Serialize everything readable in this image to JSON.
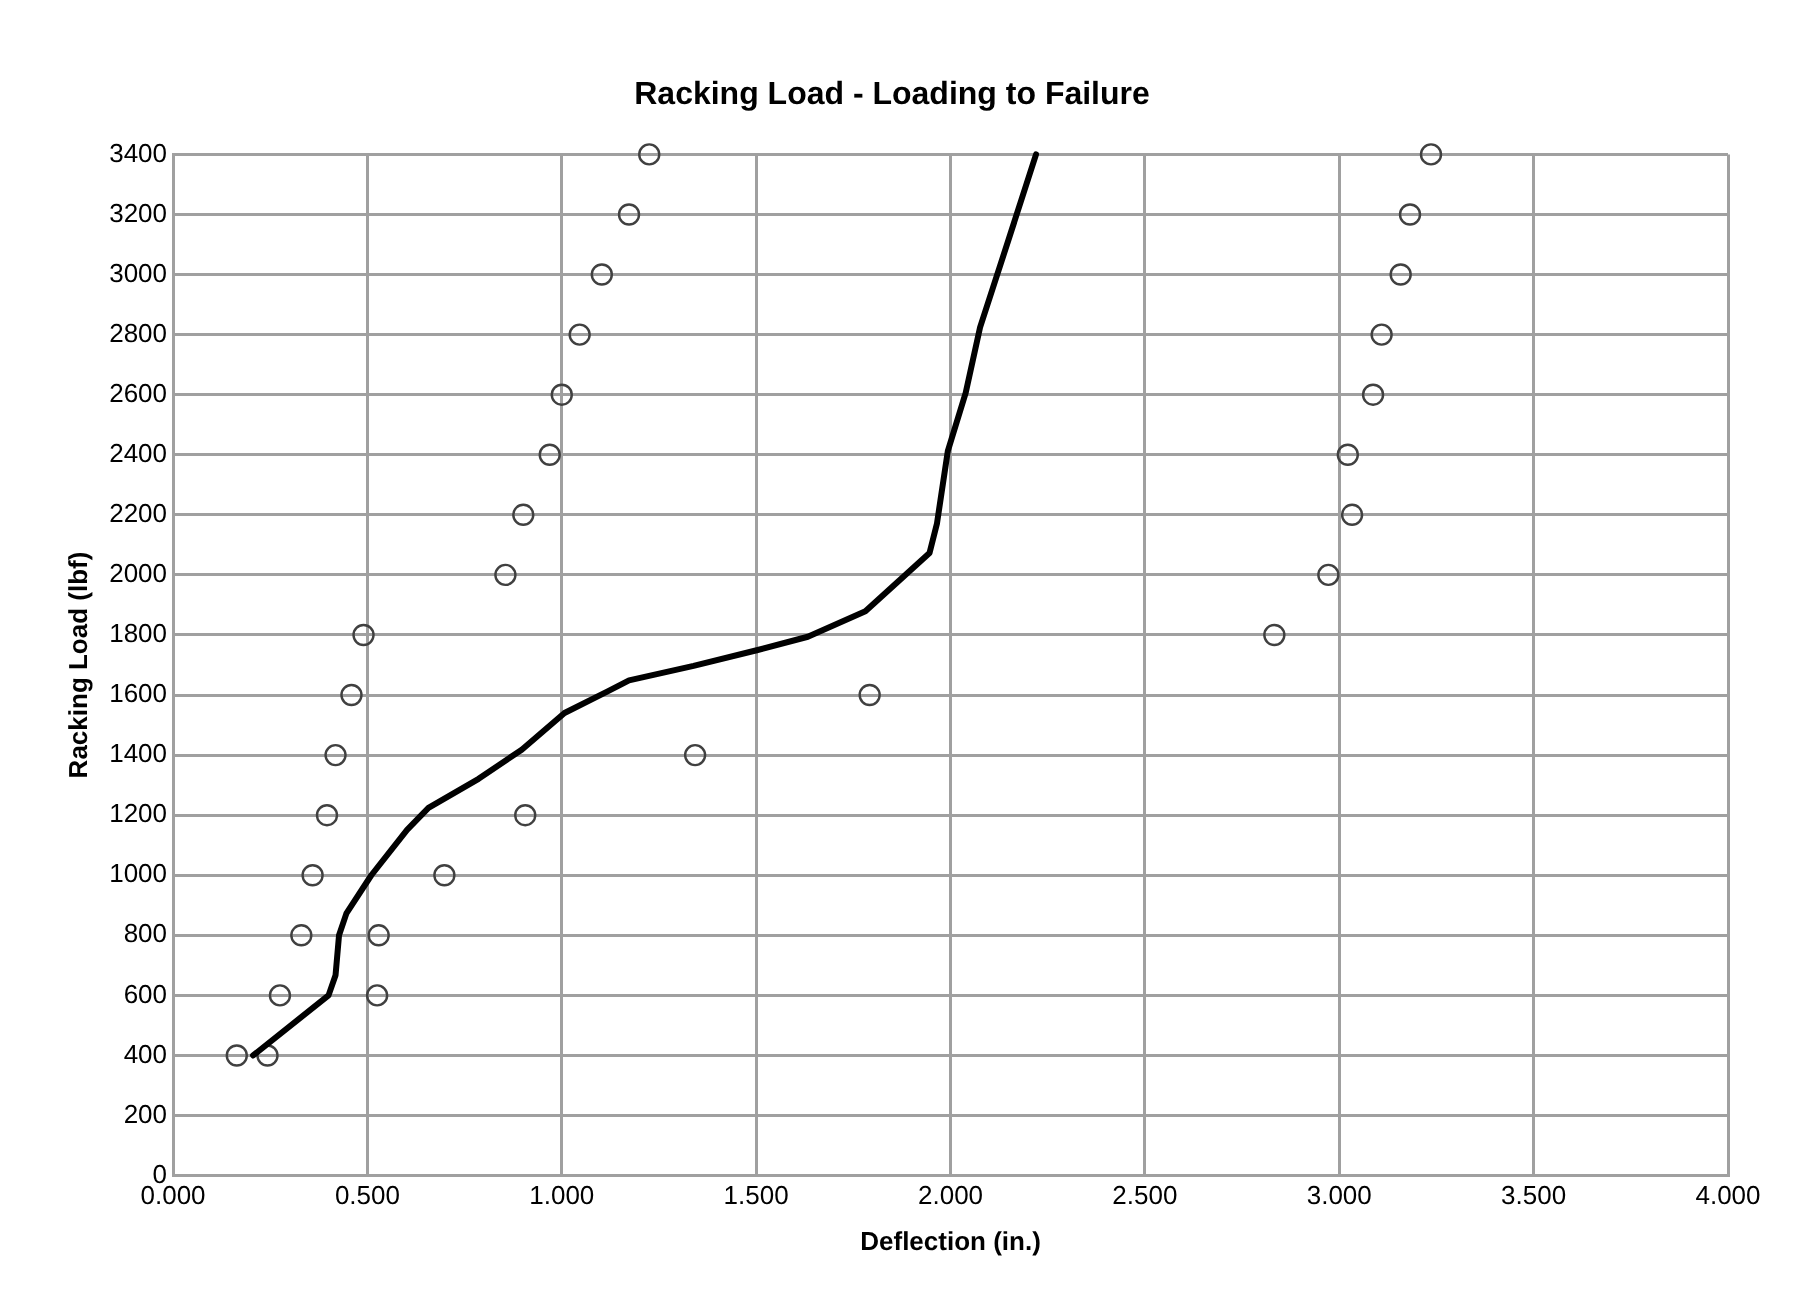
{
  "chart_data": {
    "type": "scatter",
    "title": "Racking Load - Loading to Failure",
    "xlabel": "Deflection (in.)",
    "ylabel": "Racking Load (lbf)",
    "xlim": [
      0,
      4
    ],
    "xticks": [
      {
        "value": 0,
        "label": "0.000"
      },
      {
        "value": 0.5,
        "label": "0.500"
      },
      {
        "value": 1,
        "label": "1.000"
      },
      {
        "value": 1.5,
        "label": "1.500"
      },
      {
        "value": 2,
        "label": "2.000"
      },
      {
        "value": 2.5,
        "label": "2.500"
      },
      {
        "value": 3,
        "label": "3.000"
      },
      {
        "value": 3.5,
        "label": "3.500"
      },
      {
        "value": 4,
        "label": "4.000"
      }
    ],
    "ylim": [
      0,
      3400
    ],
    "yticks": [
      0,
      200,
      400,
      600,
      800,
      1000,
      1200,
      1400,
      1600,
      1800,
      2000,
      2200,
      2400,
      2600,
      2800,
      3000,
      3200,
      3400
    ],
    "grid": true,
    "legend": false,
    "series": [
      {
        "type": "line",
        "color": "#000000",
        "marker": "none",
        "x": [
          0.206,
          0.4,
          0.418,
          0.427,
          0.446,
          0.51,
          0.602,
          0.657,
          0.786,
          0.897,
          1.007,
          1.118,
          1.173,
          1.339,
          1.504,
          1.633,
          1.781,
          1.946,
          1.965,
          1.993,
          2.039,
          2.076,
          2.149,
          2.22
        ],
        "values": [
          400,
          600,
          667,
          800,
          873,
          1000,
          1151,
          1224,
          1321,
          1418,
          1540,
          1612,
          1649,
          1697,
          1750,
          1794,
          1879,
          2073,
          2170,
          2412,
          2606,
          2824,
          3115,
          3400
        ]
      },
      {
        "type": "scatter",
        "color": "#404040",
        "marker": "circle",
        "x": [
          0.164,
          0.275,
          0.33,
          0.359,
          0.396,
          0.418,
          0.459,
          0.49,
          0.243,
          0.525,
          0.529,
          0.698,
          0.906,
          1.343,
          1.792,
          0.855,
          0.901,
          0.969,
          1.0,
          1.046,
          1.103,
          1.173,
          1.225,
          2.833,
          2.972,
          3.033,
          3.022,
          3.087,
          3.109,
          3.158,
          3.182,
          3.236
        ],
        "values": [
          400,
          600,
          800,
          1000,
          1200,
          1400,
          1600,
          1800,
          400,
          600,
          800,
          1000,
          1200,
          1400,
          1600,
          2000,
          2200,
          2400,
          2600,
          2800,
          3000,
          3200,
          3400,
          1800,
          2000,
          2200,
          2400,
          2600,
          2800,
          3000,
          3200,
          3400
        ]
      }
    ]
  }
}
